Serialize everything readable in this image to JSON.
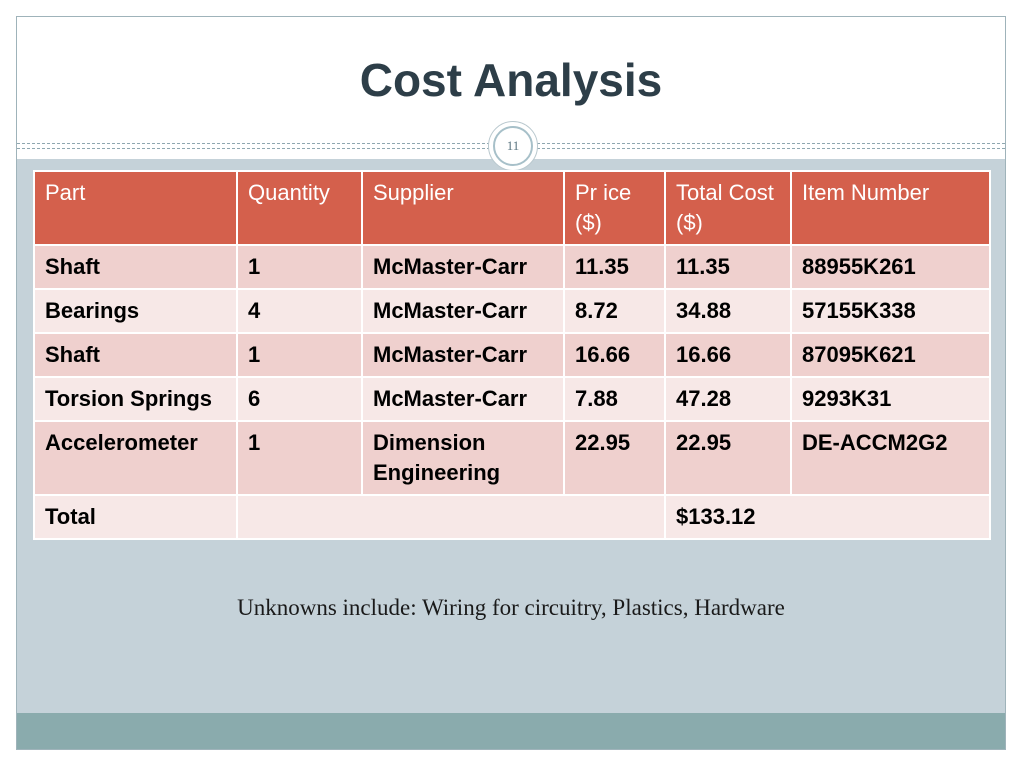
{
  "title": "Cost Analysis",
  "page_number": "11",
  "table": {
    "headers": [
      "Part",
      "Quantity",
      "Supplier",
      "Pr ice ($)",
      "Total Cost ($)",
      "Item Number"
    ],
    "rows": [
      [
        "Shaft",
        "1",
        "McMaster-Carr",
        "11.35",
        "11.35",
        "88955K261"
      ],
      [
        "Bearings",
        "4",
        "McMaster-Carr",
        "8.72",
        "34.88",
        "57155K338"
      ],
      [
        "Shaft",
        "1",
        "McMaster-Carr",
        "16.66",
        "16.66",
        "87095K621"
      ],
      [
        "Torsion Springs",
        "6",
        "McMaster-Carr",
        "7.88",
        "47.28",
        "9293K31"
      ],
      [
        "Accelerometer",
        "1",
        "Dimension Engineering",
        "22.95",
        "22.95",
        "DE-ACCM2G2"
      ]
    ],
    "total_label": "Total",
    "total_value": "$133.12"
  },
  "note": "Unknowns include: Wiring for circuitry, Plastics, Hardware",
  "colors": {
    "header_bg": "#d4604c",
    "row_odd": "#efd0ce",
    "row_even": "#f7e8e7",
    "slide_bg": "#c5d2d9",
    "footer_bar": "#8aabad",
    "title_color": "#2d3e48"
  }
}
